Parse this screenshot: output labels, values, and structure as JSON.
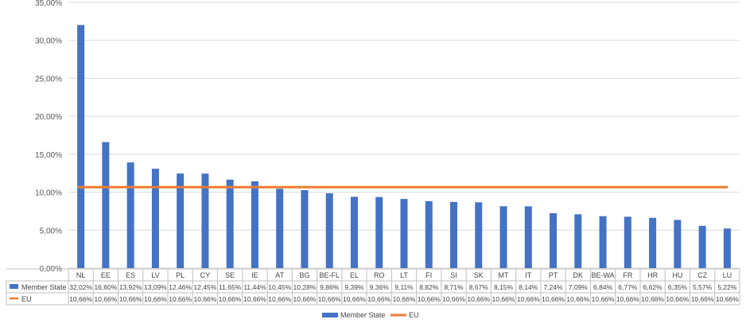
{
  "chart_data": {
    "type": "bar",
    "categories": [
      "NL",
      "EE",
      "ES",
      "LV",
      "PL",
      "CY",
      "SE",
      "IE",
      "AT",
      "BG",
      "BE-FL",
      "EL",
      "RO",
      "LT",
      "FI",
      "SI",
      "SK",
      "MT",
      "IT",
      "PT",
      "DK",
      "BE-WA",
      "FR",
      "HR",
      "HU",
      "CZ",
      "LU"
    ],
    "series": [
      {
        "name": "Member State",
        "type": "bar",
        "color": "#4472c4",
        "values": [
          32.02,
          16.6,
          13.92,
          13.09,
          12.46,
          12.45,
          11.65,
          11.44,
          10.45,
          10.28,
          9.86,
          9.39,
          9.36,
          9.11,
          8.82,
          8.71,
          8.67,
          8.15,
          8.14,
          7.24,
          7.09,
          6.84,
          6.77,
          6.62,
          6.35,
          5.57,
          5.22
        ],
        "labels": [
          "32,02%",
          "16,60%",
          "13,92%",
          "13,09%",
          "12,46%",
          "12,45%",
          "11,65%",
          "11,44%",
          "10,45%",
          "10,28%",
          "9,86%",
          "9,39%",
          "9,36%",
          "9,11%",
          "8,82%",
          "8,71%",
          "8,67%",
          "8,15%",
          "8,14%",
          "7,24%",
          "7,09%",
          "6,84%",
          "6,77%",
          "6,62%",
          "6,35%",
          "5,57%",
          "5,22%"
        ]
      },
      {
        "name": "EU",
        "type": "line",
        "color": "#ed7d31",
        "values": [
          10.66,
          10.66,
          10.66,
          10.66,
          10.66,
          10.66,
          10.66,
          10.66,
          10.66,
          10.66,
          10.66,
          10.66,
          10.66,
          10.66,
          10.66,
          10.66,
          10.66,
          10.66,
          10.66,
          10.66,
          10.66,
          10.66,
          10.66,
          10.66,
          10.66,
          10.66,
          10.66
        ],
        "labels": [
          "10,66%",
          "10,66%",
          "10,66%",
          "10,66%",
          "10,66%",
          "10,66%",
          "10,66%",
          "10,66%",
          "10,66%",
          "10,66%",
          "10,66%",
          "10,66%",
          "10,66%",
          "10,66%",
          "10,66%",
          "10,66%",
          "10,66%",
          "10,66%",
          "10,66%",
          "10,66%",
          "10,66%",
          "10,66%",
          "10,66%",
          "10,66%",
          "10,66%",
          "10,66%",
          "10,66%"
        ]
      }
    ],
    "ylim": [
      0,
      35
    ],
    "yticks": [
      0,
      5,
      10,
      15,
      20,
      25,
      30,
      35
    ],
    "ytick_labels": [
      "0,00%",
      "5,00%",
      "10,00%",
      "15,00%",
      "20,00%",
      "25,00%",
      "30,00%",
      "35,00%"
    ],
    "grid": "horizontal",
    "legend_placement": "bottom",
    "data_table": true
  }
}
